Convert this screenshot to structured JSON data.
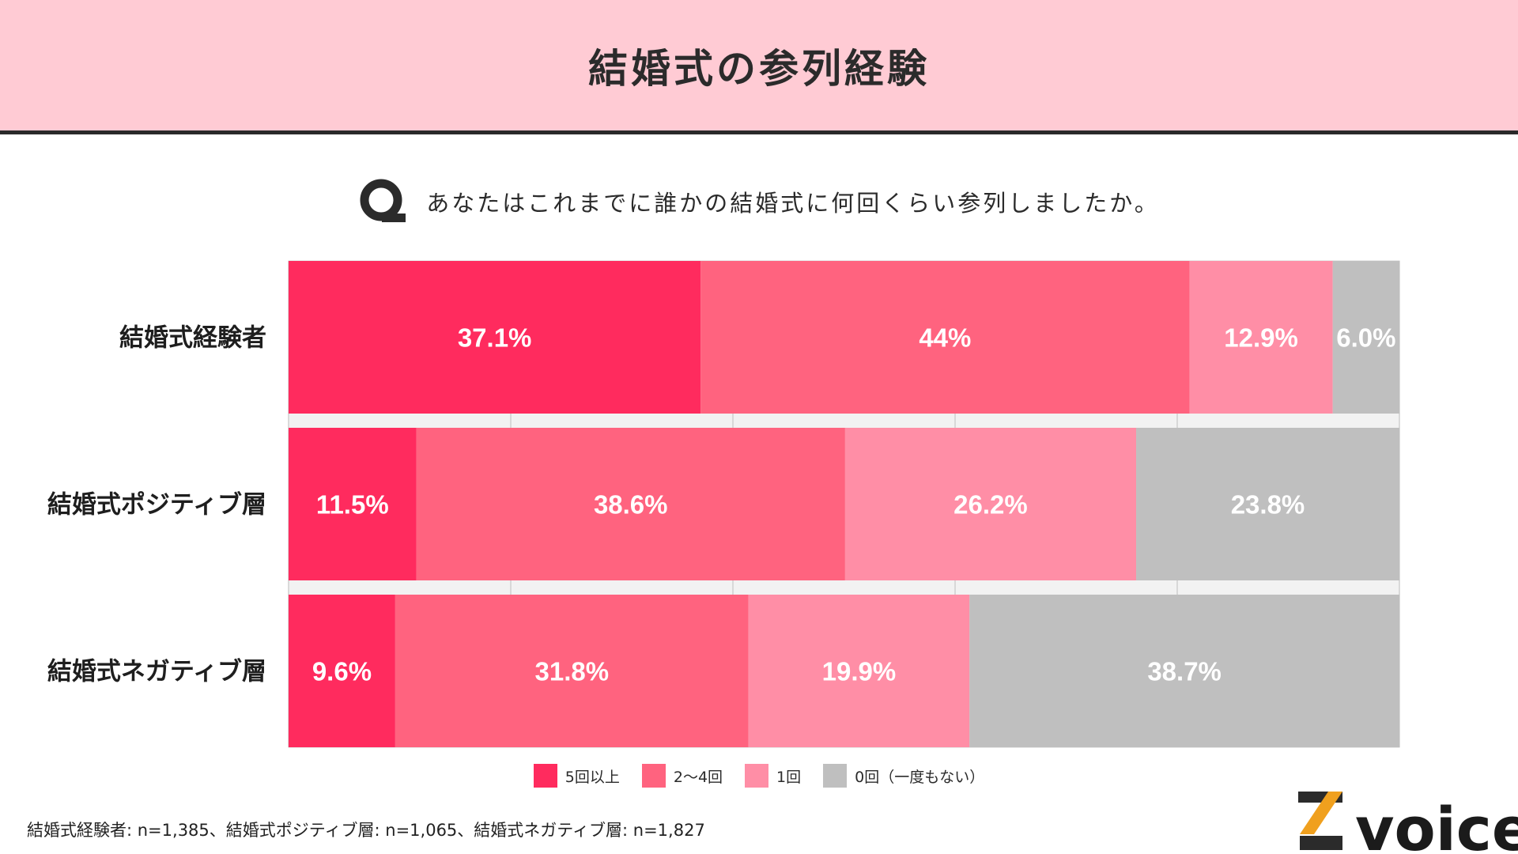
{
  "title": "結婚式の参列経験",
  "question": {
    "icon": "q-icon",
    "text": "あなたはこれまでに誰かの結婚式に何回くらい参列しましたか。"
  },
  "colors": {
    "header_bg": "#ffcbd4",
    "series_5plus": "#ff2b5e",
    "series_2to4": "#ff637f",
    "series_1": "#ff8ea6",
    "series_0": "#bfbfbf"
  },
  "chart_data": {
    "type": "bar",
    "orientation": "horizontal",
    "stacked": true,
    "percent_scale": true,
    "title": "結婚式の参列経験",
    "xlim": [
      0,
      100
    ],
    "categories": [
      "結婚式経験者",
      "結婚式ポジティブ層",
      "結婚式ネガティブ層"
    ],
    "series": [
      {
        "name": "5回以上",
        "color": "#ff2b5e",
        "values": [
          37.1,
          11.5,
          9.6
        ],
        "labels": [
          "37.1%",
          "11.5%",
          "9.6%"
        ]
      },
      {
        "name": "2〜4回",
        "color": "#ff637f",
        "values": [
          44,
          38.6,
          31.8
        ],
        "labels": [
          "44%",
          "38.6%",
          "31.8%"
        ]
      },
      {
        "name": "1回",
        "color": "#ff8ea6",
        "values": [
          12.9,
          26.2,
          19.9
        ],
        "labels": [
          "12.9%",
          "26.2%",
          "19.9%"
        ]
      },
      {
        "name": "0回（一度もない）",
        "color": "#bfbfbf",
        "values": [
          6.0,
          23.8,
          38.7
        ],
        "labels": [
          "6.0%",
          "23.8%",
          "38.7%"
        ]
      }
    ],
    "legend_position": "bottom",
    "grid": true
  },
  "footnote": "結婚式経験者: n=1,385、結婚式ポジティブ層: n=1,065、結婚式ネガティブ層: n=1,827",
  "logo": {
    "text": "voice",
    "mark": "Z"
  }
}
